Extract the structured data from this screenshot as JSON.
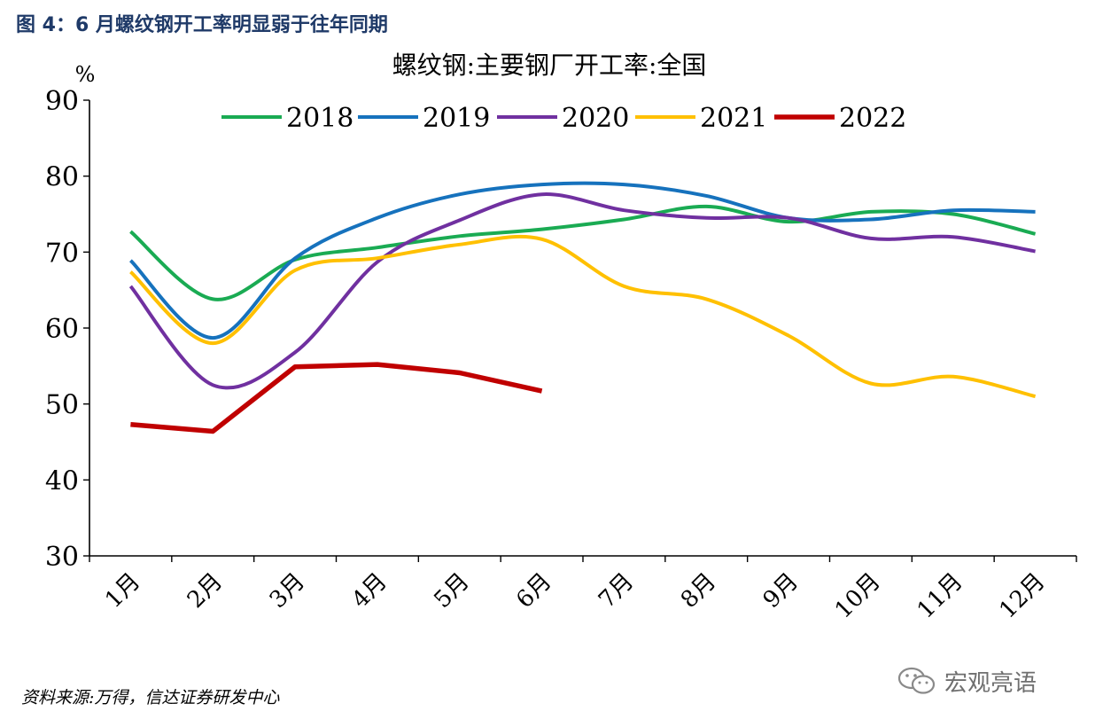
{
  "figure": {
    "heading": "图 4：6 月螺纹钢开工率明显弱于往年同期",
    "source": "资料来源:万得，信达证券研发中心",
    "watermark": "宏观亮语",
    "watermark_icon": "wechat-icon"
  },
  "chart_data": {
    "type": "line",
    "title": "螺纹钢:主要钢厂开工率:全国",
    "unit_label": "%",
    "xlabel": "",
    "ylabel": "",
    "categories": [
      "1月",
      "2月",
      "3月",
      "4月",
      "5月",
      "6月",
      "7月",
      "8月",
      "9月",
      "10月",
      "11月",
      "12月"
    ],
    "ylim": [
      30,
      90
    ],
    "yticks": [
      30,
      40,
      50,
      60,
      70,
      80,
      90
    ],
    "grid": false,
    "legend_position": "top",
    "series": [
      {
        "name": "2018",
        "color": "#1aab53",
        "values": [
          72.7,
          63.8,
          69.0,
          70.6,
          72.1,
          73.0,
          74.3,
          76.0,
          74.0,
          75.3,
          75.0,
          72.4
        ]
      },
      {
        "name": "2019",
        "color": "#1672bd",
        "values": [
          68.9,
          58.7,
          69.2,
          74.5,
          77.6,
          78.9,
          78.9,
          77.4,
          74.5,
          74.3,
          75.5,
          75.3
        ]
      },
      {
        "name": "2020",
        "color": "#7030a0",
        "values": [
          65.5,
          52.5,
          56.8,
          68.7,
          74.2,
          77.6,
          75.5,
          74.5,
          74.5,
          71.8,
          72.0,
          70.1
        ]
      },
      {
        "name": "2021",
        "color": "#ffc000",
        "values": [
          67.4,
          58.0,
          67.6,
          69.2,
          71.0,
          71.7,
          65.5,
          63.8,
          59.0,
          52.7,
          53.6,
          51.0
        ]
      },
      {
        "name": "2022",
        "color": "#c00000",
        "values": [
          47.3,
          46.4,
          54.9,
          55.2,
          54.1,
          51.7,
          null,
          null,
          null,
          null,
          null,
          null
        ]
      }
    ]
  }
}
